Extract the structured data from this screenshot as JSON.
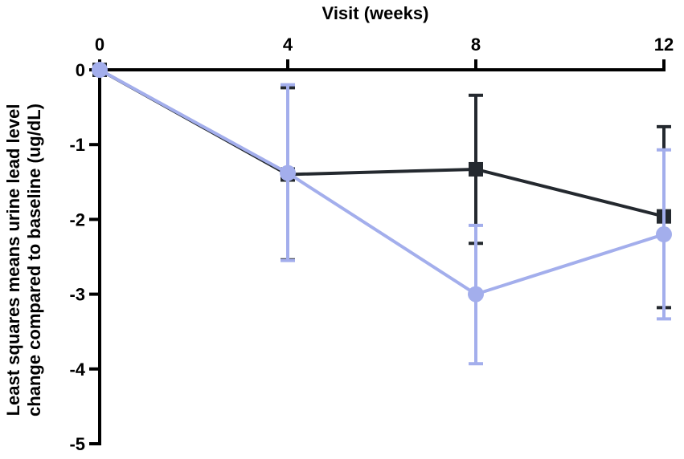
{
  "chart_data": {
    "type": "line",
    "xlabel": "Visit (weeks)",
    "ylabel_lines": [
      "Least squares means urine lead level",
      "change compared to baseline (ug/dL)"
    ],
    "x_ticks": [
      0,
      4,
      8,
      12
    ],
    "y_ticks": [
      0,
      -1,
      -2,
      -3,
      -4,
      -5
    ],
    "xlim": [
      0,
      12
    ],
    "ylim": [
      -5,
      0
    ],
    "x_axis_position": "top",
    "grid": false,
    "series": [
      {
        "marker": "square",
        "color": "#24292f",
        "x": [
          0,
          4,
          8,
          12
        ],
        "y": [
          0,
          -1.4,
          -1.33,
          -1.96
        ],
        "err_low": [
          0,
          -2.54,
          -2.32,
          -3.18
        ],
        "err_high": [
          0,
          -0.24,
          -0.34,
          -0.76
        ]
      },
      {
        "marker": "circle",
        "color": "#a3aeec",
        "x": [
          0,
          4,
          8,
          12
        ],
        "y": [
          0,
          -1.38,
          -3.0,
          -2.2
        ],
        "err_low": [
          0,
          -2.55,
          -3.93,
          -3.33
        ],
        "err_high": [
          0,
          -0.2,
          -2.08,
          -1.07
        ]
      }
    ]
  }
}
